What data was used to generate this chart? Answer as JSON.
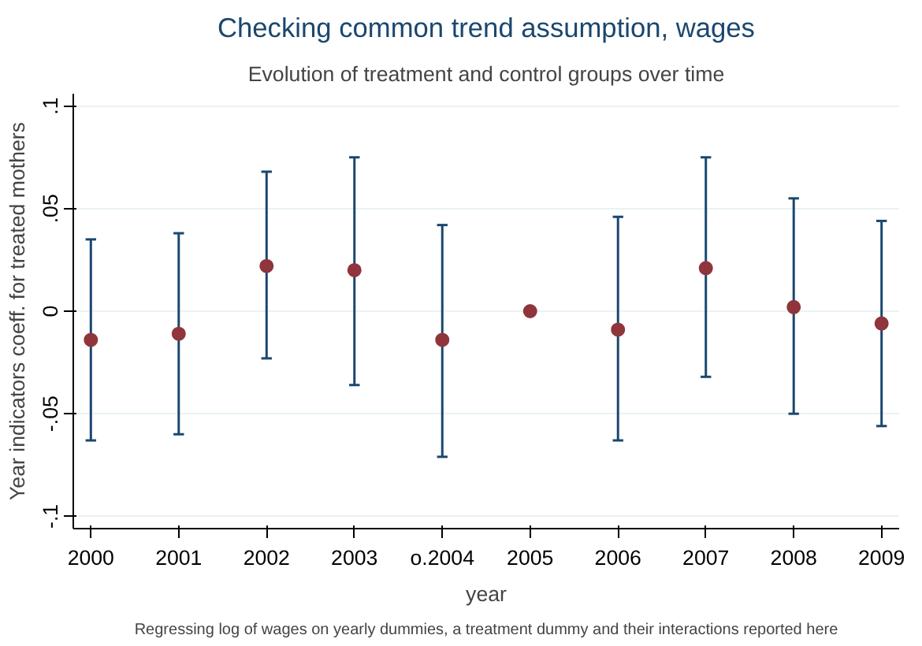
{
  "chart_data": {
    "type": "scatter",
    "title": "Checking common trend assumption, wages",
    "subtitle": "Evolution of treatment and control groups over time",
    "xlabel": "year",
    "ylabel": "Year indicators coeff. for treated mothers",
    "annotations": [
      "Regressing log of wages on yearly dummies, a treatment dummy and their interactions reported here"
    ],
    "categories": [
      "2000",
      "2001",
      "2002",
      "2003",
      "o.2004",
      "2005",
      "2006",
      "2007",
      "2008",
      "2009"
    ],
    "series": [
      {
        "color": "#90353b",
        "values": [
          -0.014,
          -0.011,
          0.022,
          0.02,
          -0.014,
          0,
          -0.009,
          0.021,
          0.002,
          -0.006
        ],
        "errors": [
          [
            -0.063,
            0.035
          ],
          [
            -0.06,
            0.038
          ],
          [
            -0.023,
            0.068
          ],
          [
            -0.036,
            0.075
          ],
          [
            -0.071,
            0.042
          ],
          null,
          [
            -0.063,
            0.046
          ],
          [
            -0.032,
            0.075
          ],
          [
            -0.05,
            0.055
          ],
          [
            -0.056,
            0.044
          ]
        ]
      }
    ],
    "ylim": [
      -0.106,
      0.106
    ],
    "yticks": [
      {
        "value": -0.1,
        "label": "-.1"
      },
      {
        "value": -0.05,
        "label": "-.05"
      },
      0,
      {
        "value": 0.05,
        "label": ".05"
      },
      {
        "value": 0.1,
        "label": ".1"
      }
    ],
    "grid": "y",
    "marker": "circle"
  }
}
